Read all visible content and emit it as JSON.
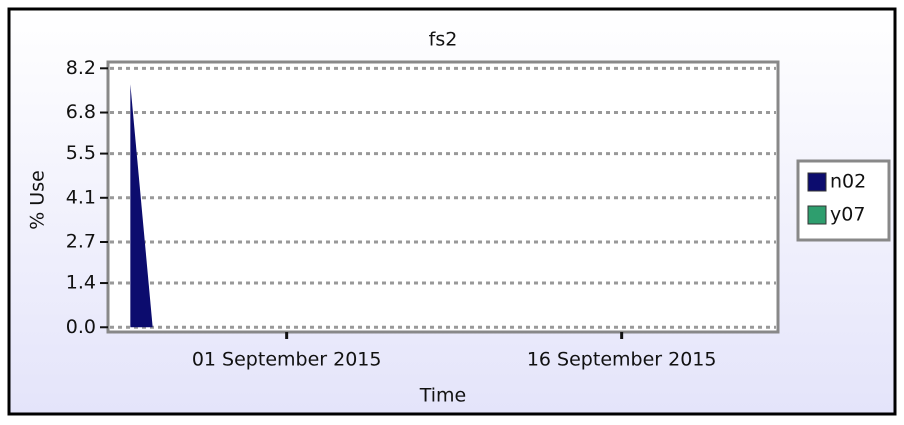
{
  "chart_data": {
    "type": "area",
    "title": "fs2",
    "x_label": "Time",
    "y_label": "% Use",
    "x": [
      "2015-08-25",
      "2015-08-26"
    ],
    "series": [
      {
        "name": "n02",
        "color": "#0c0c6e",
        "values": [
          7.7,
          0
        ]
      },
      {
        "name": "y07",
        "color": "#2e9e6e",
        "values": [
          null,
          null
        ]
      }
    ],
    "xlim": [
      "2015-08-24",
      "2015-09-23"
    ],
    "xticks": [
      {
        "value": "2015-09-01",
        "label": "01 September 2015"
      },
      {
        "value": "2015-09-16",
        "label": "16 September 2015"
      }
    ],
    "ylim": [
      -0.15,
      8.4
    ],
    "yticks": [
      {
        "value": 0,
        "label": "0.0"
      },
      1.4,
      2.7,
      4.1,
      5.5,
      6.8,
      8.2
    ],
    "grid": true,
    "legend": "right"
  }
}
